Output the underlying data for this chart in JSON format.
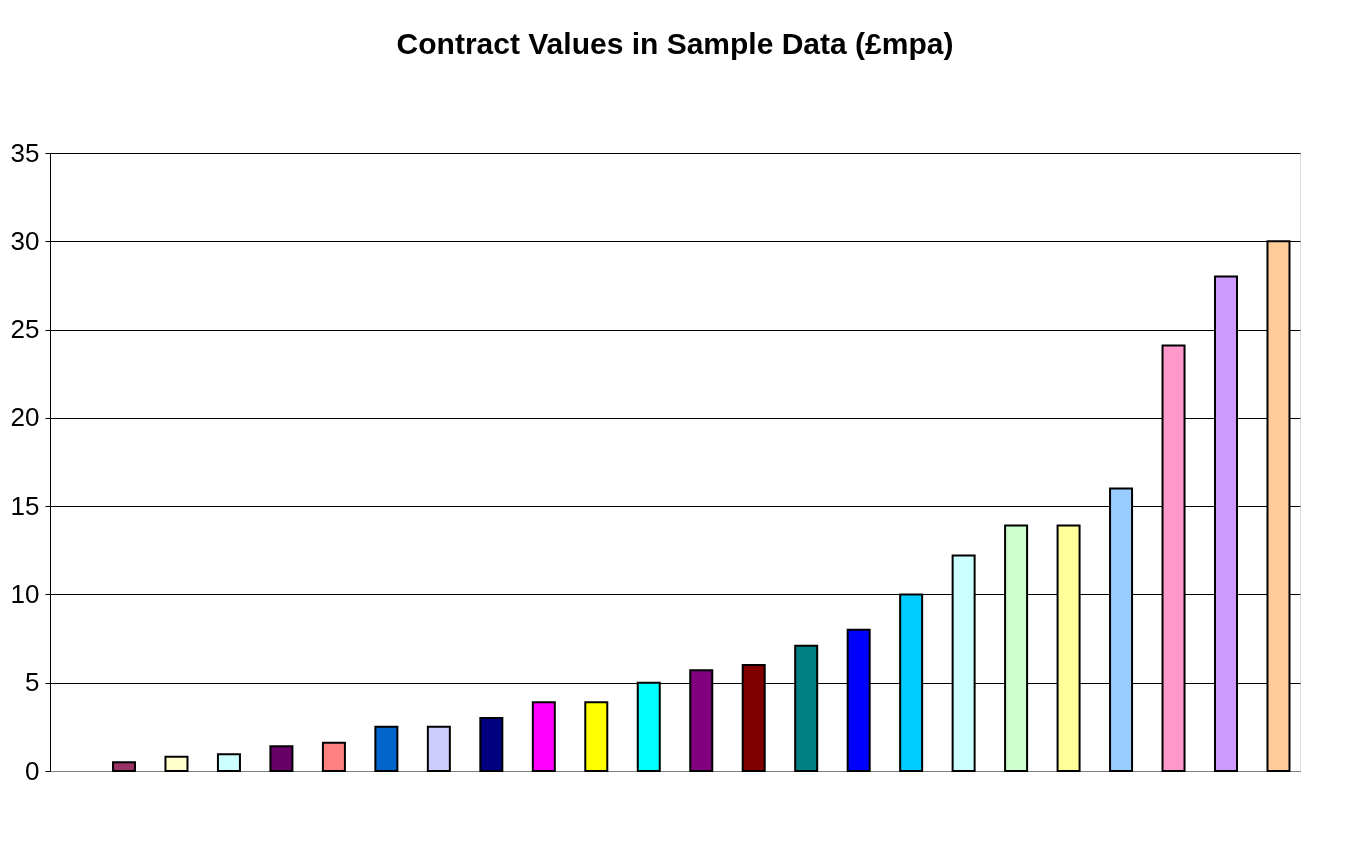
{
  "chart_data": {
    "type": "bar",
    "title": "Contract Values in Sample Data (£mpa)",
    "categories": [
      null,
      null,
      null,
      null,
      null,
      null,
      null,
      null,
      null,
      null,
      null,
      null,
      null,
      null,
      null,
      null,
      null,
      null,
      null,
      null,
      null,
      null,
      null,
      null
    ],
    "values": [
      null,
      0.5,
      0.8,
      0.95,
      1.4,
      1.6,
      2.5,
      2.5,
      3.0,
      3.9,
      3.9,
      5.0,
      5.7,
      6.0,
      7.1,
      8.0,
      10.0,
      12.2,
      13.9,
      13.9,
      16.0,
      24.1,
      28.0,
      30.0
    ],
    "colors": [
      "#c0c0c0",
      "#993366",
      "#ffffcc",
      "#ccffff",
      "#660066",
      "#ff8080",
      "#0066cc",
      "#ccccff",
      "#000080",
      "#ff00ff",
      "#ffff00",
      "#00ffff",
      "#800080",
      "#800000",
      "#008080",
      "#0000ff",
      "#00ccff",
      "#ccffff",
      "#ccffcc",
      "#ffff99",
      "#99ccff",
      "#ff99cc",
      "#cc99ff",
      "#ffcc99"
    ],
    "ylim": [
      0,
      35
    ],
    "yticks": [
      0,
      5,
      10,
      15,
      20,
      25,
      30,
      35
    ],
    "grid": "y",
    "legend": false
  }
}
